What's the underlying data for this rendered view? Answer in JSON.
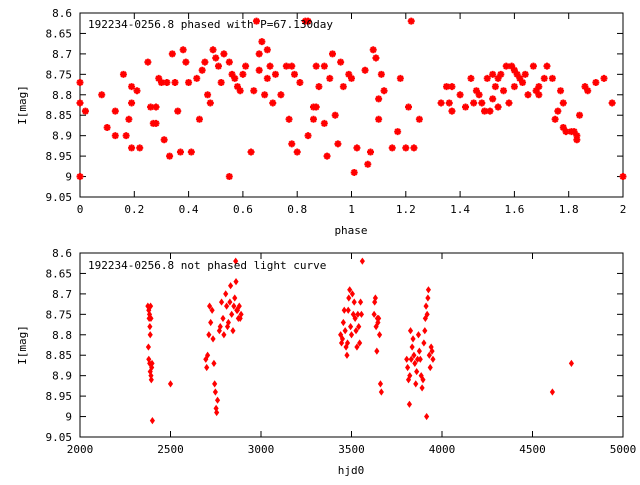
{
  "chart_data": [
    {
      "type": "scatter",
      "title": "192234-0256.8 phased with P=67.130day",
      "xlabel": "phase",
      "ylabel": "I[mag]",
      "xlim": [
        0,
        2
      ],
      "ylim": [
        8.6,
        9.05
      ],
      "y_inverted": true,
      "grid": false,
      "x_ticks": [
        "0",
        "0.2",
        "0.4",
        "0.6",
        "0.8",
        "1",
        "1.2",
        "1.4",
        "1.6",
        "1.8",
        "2"
      ],
      "x_tick_values": [
        0,
        0.2,
        0.4,
        0.6,
        0.8,
        1,
        1.2,
        1.4,
        1.6,
        1.8,
        2
      ],
      "y_ticks": [
        "8.6",
        "8.65",
        "8.7",
        "8.75",
        "8.8",
        "8.85",
        "8.9",
        "8.95",
        "9",
        "9.05"
      ],
      "y_tick_values": [
        8.6,
        8.65,
        8.7,
        8.75,
        8.8,
        8.85,
        8.9,
        8.95,
        9.0,
        9.05
      ],
      "marker_color": "#ff0000",
      "marker": "star",
      "points": [
        [
          0.0,
          8.77
        ],
        [
          0.0,
          8.82
        ],
        [
          0.0,
          9.0
        ],
        [
          0.02,
          8.84
        ],
        [
          0.08,
          8.8
        ],
        [
          0.1,
          8.88
        ],
        [
          0.13,
          8.84
        ],
        [
          0.13,
          8.9
        ],
        [
          0.16,
          8.75
        ],
        [
          0.17,
          8.9
        ],
        [
          0.18,
          8.86
        ],
        [
          0.19,
          8.78
        ],
        [
          0.19,
          8.82
        ],
        [
          0.19,
          8.93
        ],
        [
          0.21,
          8.79
        ],
        [
          0.22,
          8.93
        ],
        [
          0.25,
          8.72
        ],
        [
          0.26,
          8.83
        ],
        [
          0.27,
          8.87
        ],
        [
          0.28,
          8.87
        ],
        [
          0.28,
          8.83
        ],
        [
          0.29,
          8.76
        ],
        [
          0.3,
          8.77
        ],
        [
          0.31,
          8.91
        ],
        [
          0.32,
          8.77
        ],
        [
          0.33,
          8.95
        ],
        [
          0.34,
          8.7
        ],
        [
          0.35,
          8.77
        ],
        [
          0.36,
          8.84
        ],
        [
          0.37,
          8.94
        ],
        [
          0.38,
          8.69
        ],
        [
          0.39,
          8.72
        ],
        [
          0.4,
          8.77
        ],
        [
          0.41,
          8.94
        ],
        [
          0.43,
          8.76
        ],
        [
          0.44,
          8.86
        ],
        [
          0.45,
          8.74
        ],
        [
          0.46,
          8.72
        ],
        [
          0.47,
          8.8
        ],
        [
          0.48,
          8.82
        ],
        [
          0.49,
          8.69
        ],
        [
          0.5,
          8.71
        ],
        [
          0.51,
          8.73
        ],
        [
          0.52,
          8.77
        ],
        [
          0.53,
          8.7
        ],
        [
          0.55,
          9.0
        ],
        [
          0.55,
          8.72
        ],
        [
          0.56,
          8.75
        ],
        [
          0.57,
          8.76
        ],
        [
          0.58,
          8.78
        ],
        [
          0.59,
          8.79
        ],
        [
          0.6,
          8.75
        ],
        [
          0.61,
          8.73
        ],
        [
          0.63,
          8.94
        ],
        [
          0.64,
          8.79
        ],
        [
          0.65,
          8.62
        ],
        [
          0.66,
          8.7
        ],
        [
          0.66,
          8.74
        ],
        [
          0.67,
          8.67
        ],
        [
          0.68,
          8.8
        ],
        [
          0.69,
          8.76
        ],
        [
          0.69,
          8.69
        ],
        [
          0.7,
          8.73
        ],
        [
          0.71,
          8.82
        ],
        [
          0.72,
          8.75
        ],
        [
          0.74,
          8.8
        ],
        [
          0.76,
          8.73
        ],
        [
          0.77,
          8.86
        ],
        [
          0.78,
          8.92
        ],
        [
          0.78,
          8.73
        ],
        [
          0.79,
          8.75
        ],
        [
          0.8,
          8.94
        ],
        [
          0.81,
          8.77
        ],
        [
          0.83,
          8.62
        ],
        [
          0.84,
          8.62
        ],
        [
          0.84,
          8.9
        ],
        [
          0.86,
          8.83
        ],
        [
          0.86,
          8.86
        ],
        [
          0.87,
          8.83
        ],
        [
          0.87,
          8.73
        ],
        [
          0.88,
          8.78
        ],
        [
          0.9,
          8.87
        ],
        [
          0.9,
          8.73
        ],
        [
          0.91,
          8.95
        ],
        [
          0.92,
          8.76
        ],
        [
          0.93,
          8.7
        ],
        [
          0.94,
          8.85
        ],
        [
          0.95,
          8.92
        ],
        [
          0.96,
          8.72
        ],
        [
          0.97,
          8.78
        ],
        [
          0.99,
          8.75
        ],
        [
          1.0,
          8.76
        ],
        [
          1.01,
          8.99
        ],
        [
          1.02,
          8.93
        ],
        [
          1.05,
          8.74
        ],
        [
          1.06,
          8.97
        ],
        [
          1.07,
          8.94
        ],
        [
          1.08,
          8.69
        ],
        [
          1.09,
          8.71
        ],
        [
          1.1,
          8.81
        ],
        [
          1.1,
          8.86
        ],
        [
          1.11,
          8.75
        ],
        [
          1.12,
          8.79
        ],
        [
          1.15,
          8.93
        ],
        [
          1.17,
          8.89
        ],
        [
          1.18,
          8.76
        ],
        [
          1.2,
          8.93
        ],
        [
          1.21,
          8.83
        ],
        [
          1.22,
          8.62
        ],
        [
          1.23,
          8.93
        ],
        [
          1.25,
          8.86
        ],
        [
          1.33,
          8.82
        ],
        [
          1.35,
          8.78
        ],
        [
          1.36,
          8.82
        ],
        [
          1.37,
          8.78
        ],
        [
          1.37,
          8.84
        ],
        [
          1.4,
          8.8
        ],
        [
          1.42,
          8.83
        ],
        [
          1.44,
          8.76
        ],
        [
          1.45,
          8.82
        ],
        [
          1.46,
          8.79
        ],
        [
          1.47,
          8.8
        ],
        [
          1.48,
          8.82
        ],
        [
          1.49,
          8.84
        ],
        [
          1.5,
          8.76
        ],
        [
          1.51,
          8.84
        ],
        [
          1.52,
          8.75
        ],
        [
          1.52,
          8.81
        ],
        [
          1.53,
          8.78
        ],
        [
          1.54,
          8.76
        ],
        [
          1.54,
          8.83
        ],
        [
          1.55,
          8.75
        ],
        [
          1.56,
          8.79
        ],
        [
          1.57,
          8.73
        ],
        [
          1.58,
          8.82
        ],
        [
          1.59,
          8.73
        ],
        [
          1.6,
          8.74
        ],
        [
          1.6,
          8.78
        ],
        [
          1.61,
          8.75
        ],
        [
          1.62,
          8.76
        ],
        [
          1.63,
          8.77
        ],
        [
          1.64,
          8.75
        ],
        [
          1.65,
          8.8
        ],
        [
          1.67,
          8.73
        ],
        [
          1.68,
          8.79
        ],
        [
          1.69,
          8.8
        ],
        [
          1.69,
          8.78
        ],
        [
          1.71,
          8.76
        ],
        [
          1.72,
          8.73
        ],
        [
          1.74,
          8.76
        ],
        [
          1.75,
          8.86
        ],
        [
          1.76,
          8.84
        ],
        [
          1.77,
          8.79
        ],
        [
          1.78,
          8.88
        ],
        [
          1.78,
          8.82
        ],
        [
          1.79,
          8.89
        ],
        [
          1.81,
          8.89
        ],
        [
          1.82,
          8.89
        ],
        [
          1.83,
          8.91
        ],
        [
          1.83,
          8.9
        ],
        [
          1.84,
          8.85
        ],
        [
          1.86,
          8.78
        ],
        [
          1.87,
          8.79
        ],
        [
          1.9,
          8.77
        ],
        [
          1.93,
          8.76
        ],
        [
          1.96,
          8.82
        ],
        [
          2.0,
          9.0
        ]
      ]
    },
    {
      "type": "scatter",
      "title": "192234-0256.8 not phased light curve",
      "xlabel": "hjd0",
      "ylabel": "I[mag]",
      "xlim": [
        2000,
        5000
      ],
      "ylim": [
        8.6,
        9.05
      ],
      "y_inverted": true,
      "grid": false,
      "x_ticks": [
        "2000",
        "2500",
        "3000",
        "3500",
        "4000",
        "4500",
        "5000"
      ],
      "x_tick_values": [
        2000,
        2500,
        3000,
        3500,
        4000,
        4500,
        5000
      ],
      "y_ticks": [
        "8.6",
        "8.65",
        "8.7",
        "8.75",
        "8.8",
        "8.85",
        "8.9",
        "8.95",
        "9",
        "9.05"
      ],
      "y_tick_values": [
        8.6,
        8.65,
        8.7,
        8.75,
        8.8,
        8.85,
        8.9,
        8.95,
        9.0,
        9.05
      ],
      "marker_color": "#ff0000",
      "marker": "diamond",
      "points": [
        [
          2375,
          8.73
        ],
        [
          2380,
          8.74
        ],
        [
          2382,
          8.76
        ],
        [
          2384,
          8.75
        ],
        [
          2386,
          8.78
        ],
        [
          2388,
          8.8
        ],
        [
          2390,
          8.73
        ],
        [
          2392,
          8.76
        ],
        [
          2378,
          8.83
        ],
        [
          2380,
          8.86
        ],
        [
          2385,
          8.87
        ],
        [
          2388,
          8.89
        ],
        [
          2392,
          8.9
        ],
        [
          2394,
          8.91
        ],
        [
          2396,
          8.88
        ],
        [
          2398,
          8.87
        ],
        [
          2400,
          9.01
        ],
        [
          2500,
          8.92
        ],
        [
          2695,
          8.86
        ],
        [
          2700,
          8.88
        ],
        [
          2705,
          8.85
        ],
        [
          2712,
          8.8
        ],
        [
          2716,
          8.73
        ],
        [
          2722,
          8.77
        ],
        [
          2730,
          8.74
        ],
        [
          2735,
          8.81
        ],
        [
          2740,
          8.87
        ],
        [
          2744,
          8.92
        ],
        [
          2748,
          8.94
        ],
        [
          2752,
          8.98
        ],
        [
          2755,
          8.99
        ],
        [
          2760,
          8.96
        ],
        [
          2770,
          8.79
        ],
        [
          2775,
          8.78
        ],
        [
          2782,
          8.72
        ],
        [
          2790,
          8.76
        ],
        [
          2795,
          8.8
        ],
        [
          2805,
          8.7
        ],
        [
          2810,
          8.73
        ],
        [
          2815,
          8.78
        ],
        [
          2820,
          8.77
        ],
        [
          2828,
          8.72
        ],
        [
          2832,
          8.68
        ],
        [
          2838,
          8.75
        ],
        [
          2845,
          8.79
        ],
        [
          2850,
          8.73
        ],
        [
          2855,
          8.71
        ],
        [
          2860,
          8.62
        ],
        [
          2862,
          8.67
        ],
        [
          2866,
          8.74
        ],
        [
          2870,
          8.74
        ],
        [
          2875,
          8.76
        ],
        [
          2880,
          8.73
        ],
        [
          2885,
          8.76
        ],
        [
          2890,
          8.75
        ],
        [
          3440,
          8.8
        ],
        [
          3445,
          8.82
        ],
        [
          3450,
          8.81
        ],
        [
          3455,
          8.77
        ],
        [
          3460,
          8.74
        ],
        [
          3465,
          8.79
        ],
        [
          3470,
          8.83
        ],
        [
          3475,
          8.85
        ],
        [
          3478,
          8.82
        ],
        [
          3482,
          8.74
        ],
        [
          3485,
          8.71
        ],
        [
          3490,
          8.69
        ],
        [
          3495,
          8.78
        ],
        [
          3500,
          8.8
        ],
        [
          3505,
          8.7
        ],
        [
          3510,
          8.75
        ],
        [
          3515,
          8.72
        ],
        [
          3520,
          8.76
        ],
        [
          3525,
          8.79
        ],
        [
          3530,
          8.83
        ],
        [
          3535,
          8.75
        ],
        [
          3540,
          8.78
        ],
        [
          3545,
          8.82
        ],
        [
          3550,
          8.72
        ],
        [
          3555,
          8.75
        ],
        [
          3560,
          8.62
        ],
        [
          3625,
          8.75
        ],
        [
          3628,
          8.72
        ],
        [
          3632,
          8.71
        ],
        [
          3636,
          8.78
        ],
        [
          3640,
          8.84
        ],
        [
          3643,
          8.76
        ],
        [
          3646,
          8.77
        ],
        [
          3650,
          8.76
        ],
        [
          3655,
          8.8
        ],
        [
          3660,
          8.92
        ],
        [
          3665,
          8.94
        ],
        [
          3805,
          8.86
        ],
        [
          3810,
          8.88
        ],
        [
          3815,
          8.91
        ],
        [
          3820,
          8.97
        ],
        [
          3822,
          8.9
        ],
        [
          3826,
          8.79
        ],
        [
          3830,
          8.86
        ],
        [
          3835,
          8.83
        ],
        [
          3840,
          8.81
        ],
        [
          3845,
          8.85
        ],
        [
          3850,
          8.87
        ],
        [
          3855,
          8.92
        ],
        [
          3860,
          8.89
        ],
        [
          3865,
          8.86
        ],
        [
          3870,
          8.8
        ],
        [
          3875,
          8.84
        ],
        [
          3880,
          8.86
        ],
        [
          3885,
          8.9
        ],
        [
          3890,
          8.93
        ],
        [
          3895,
          8.91
        ],
        [
          3900,
          8.82
        ],
        [
          3905,
          8.79
        ],
        [
          3908,
          8.76
        ],
        [
          3912,
          8.73
        ],
        [
          3918,
          8.75
        ],
        [
          3922,
          8.71
        ],
        [
          3925,
          8.69
        ],
        [
          3930,
          8.85
        ],
        [
          3935,
          8.88
        ],
        [
          3940,
          8.83
        ],
        [
          3945,
          8.84
        ],
        [
          3950,
          8.86
        ],
        [
          3915,
          9.0
        ],
        [
          4610,
          8.94
        ],
        [
          4715,
          8.87
        ]
      ]
    }
  ]
}
